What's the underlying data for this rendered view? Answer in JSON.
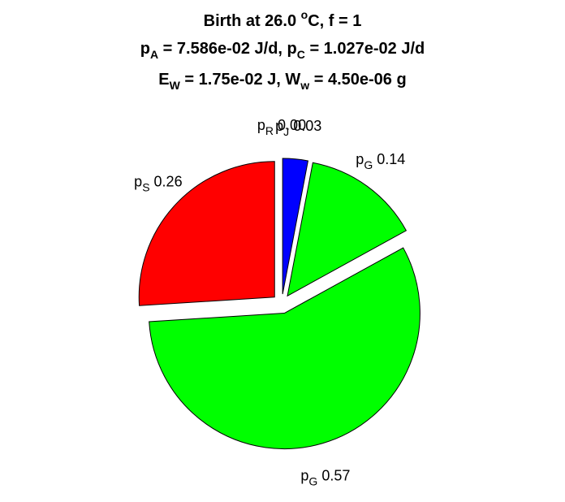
{
  "chart_data": {
    "type": "pie",
    "title_lines": [
      [
        {
          "t": "Birth at 26.0 "
        },
        {
          "t": "o",
          "s": "sup"
        },
        {
          "t": "C, f = 1"
        }
      ],
      [
        {
          "t": "p"
        },
        {
          "t": "A",
          "s": "sub"
        },
        {
          "t": " = 7.586e-02 J/d, p"
        },
        {
          "t": "C",
          "s": "sub"
        },
        {
          "t": " = 1.027e-02 J/d"
        }
      ],
      [
        {
          "t": "E"
        },
        {
          "t": "W",
          "s": "sub"
        },
        {
          "t": " = 1.75e-02 J, W"
        },
        {
          "t": "w",
          "s": "sub"
        },
        {
          "t": " = 4.50e-06 g"
        }
      ]
    ],
    "start_angle_deg": 90,
    "direction": "clockwise",
    "slices": [
      {
        "sym": "p",
        "sub": "J",
        "value": 0.03,
        "value_text": "0.03",
        "color": "#0000ff"
      },
      {
        "sym": "p",
        "sub": "G",
        "value": 0.14,
        "value_text": "0.14",
        "color": "#00ff00"
      },
      {
        "sym": "p",
        "sub": "G",
        "value": 0.57,
        "value_text": "0.57",
        "color": "#00ff00"
      },
      {
        "sym": "p",
        "sub": "S",
        "value": 0.26,
        "value_text": "0.26",
        "color": "#ff0000"
      },
      {
        "sym": "p",
        "sub": "R",
        "value": 0.0,
        "value_text": "0.00",
        "color": "#000000"
      }
    ]
  }
}
